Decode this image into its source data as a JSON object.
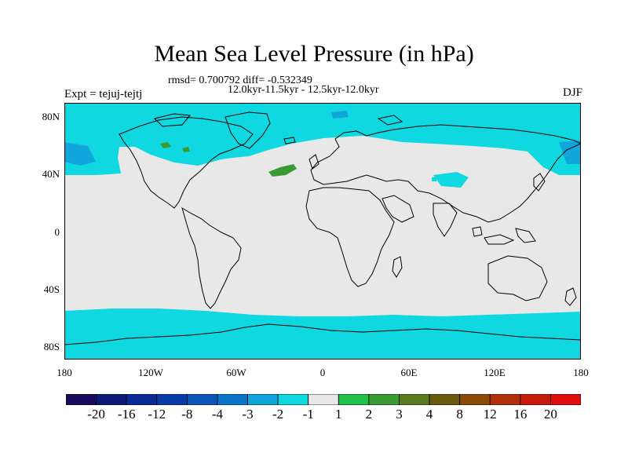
{
  "title": "Mean Sea Level Pressure (in hPa)",
  "stats_line": "rmsd= 0.700792 diff= -0.532349",
  "period_line": "12.0kyr-11.5kyr - 12.5kyr-12.0kyr",
  "experiment_label": "Expt = tejuj-tejtj",
  "season": "DJF",
  "lat_ticks": [
    "80N",
    "40N",
    "0",
    "40S",
    "80S"
  ],
  "lon_ticks": [
    "180",
    "120W",
    "60W",
    "0",
    "60E",
    "120E",
    "180"
  ],
  "colorbar": {
    "labels": [
      "-20",
      "-16",
      "-12",
      "-8",
      "-4",
      "-3",
      "-2",
      "-1",
      "1",
      "2",
      "3",
      "4",
      "8",
      "12",
      "16",
      "20"
    ],
    "colors": [
      "#1a0a5e",
      "#0b1a78",
      "#0a2a96",
      "#0a3ca8",
      "#0b54b8",
      "#0b74c8",
      "#10a6dc",
      "#10d8e0",
      "#e8e8e8",
      "#22c04a",
      "#3a9a34",
      "#5a7a1e",
      "#6a5a10",
      "#8a4a0a",
      "#b0300a",
      "#c81a0a",
      "#e01010"
    ]
  },
  "palette": {
    "neutral": "#e8e8e8",
    "minus_2_to_1": "#10d8e0",
    "minus_3_to_2": "#10a6dc",
    "plus_1_to_2": "#22c04a",
    "plus_2_to_3": "#3a9a34"
  }
}
